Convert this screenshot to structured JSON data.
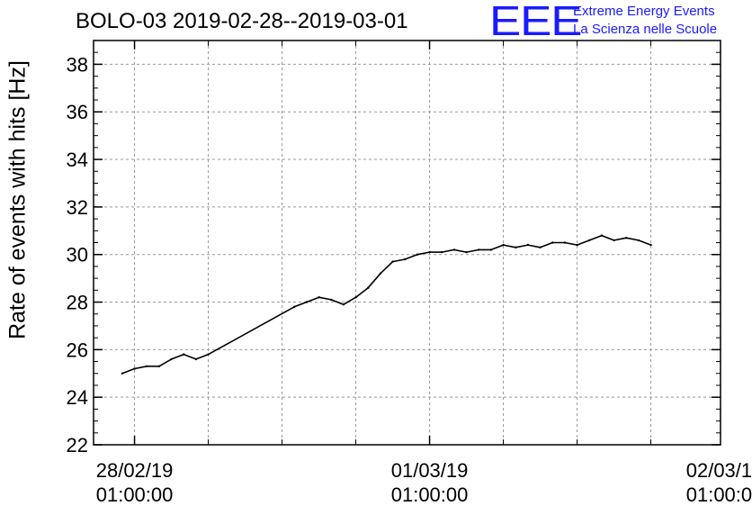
{
  "chart_data": {
    "type": "line",
    "title": "BOLO-03 2019-02-28--2019-03-01",
    "ylabel": "Rate of events with hits [Hz]",
    "xlabel": "",
    "ylim": [
      22,
      39
    ],
    "xlim": [
      "2019-02-27 21:40:00",
      "2019-03-02 00:40:00"
    ],
    "y_ticks": [
      22,
      24,
      26,
      28,
      30,
      32,
      34,
      36,
      38
    ],
    "x_ticks": [
      {
        "date": "28/02/19",
        "time": "01:00:00",
        "at": "2019-02-28 01:00:00"
      },
      {
        "date": "01/03/19",
        "time": "01:00:00",
        "at": "2019-03-01 01:00:00"
      },
      {
        "date": "02/03/19",
        "time": "01:00:00",
        "at": "2019-03-02 01:00:00"
      }
    ],
    "grid": true,
    "series": [
      {
        "x": [
          "2019-02-28 00:00",
          "2019-02-28 01:00",
          "2019-02-28 02:00",
          "2019-02-28 03:00",
          "2019-02-28 04:00",
          "2019-02-28 05:00",
          "2019-02-28 06:00",
          "2019-02-28 07:00",
          "2019-02-28 14:00",
          "2019-02-28 15:00",
          "2019-02-28 16:00",
          "2019-02-28 17:00",
          "2019-02-28 18:00",
          "2019-02-28 19:00",
          "2019-02-28 20:00",
          "2019-02-28 21:00",
          "2019-02-28 22:00",
          "2019-02-28 23:00",
          "2019-03-01 00:00",
          "2019-03-01 01:00",
          "2019-03-01 02:00",
          "2019-03-01 03:00",
          "2019-03-01 04:00",
          "2019-03-01 05:00",
          "2019-03-01 06:00",
          "2019-03-01 07:00",
          "2019-03-01 08:00",
          "2019-03-01 09:00",
          "2019-03-01 10:00",
          "2019-03-01 11:00",
          "2019-03-01 12:00",
          "2019-03-01 13:00",
          "2019-03-01 14:00",
          "2019-03-01 15:00",
          "2019-03-01 16:00",
          "2019-03-01 17:00",
          "2019-03-01 18:00",
          "2019-03-01 19:00"
        ],
        "y": [
          25.0,
          25.2,
          25.3,
          25.3,
          25.6,
          25.8,
          25.6,
          25.8,
          27.8,
          28.0,
          28.2,
          28.1,
          27.9,
          28.2,
          28.6,
          29.2,
          29.7,
          29.8,
          30.0,
          30.1,
          30.1,
          30.2,
          30.1,
          30.2,
          30.2,
          30.4,
          30.3,
          30.4,
          30.3,
          30.5,
          30.5,
          30.4,
          30.6,
          30.8,
          30.6,
          30.7,
          30.6,
          30.4
        ]
      }
    ]
  }
}
